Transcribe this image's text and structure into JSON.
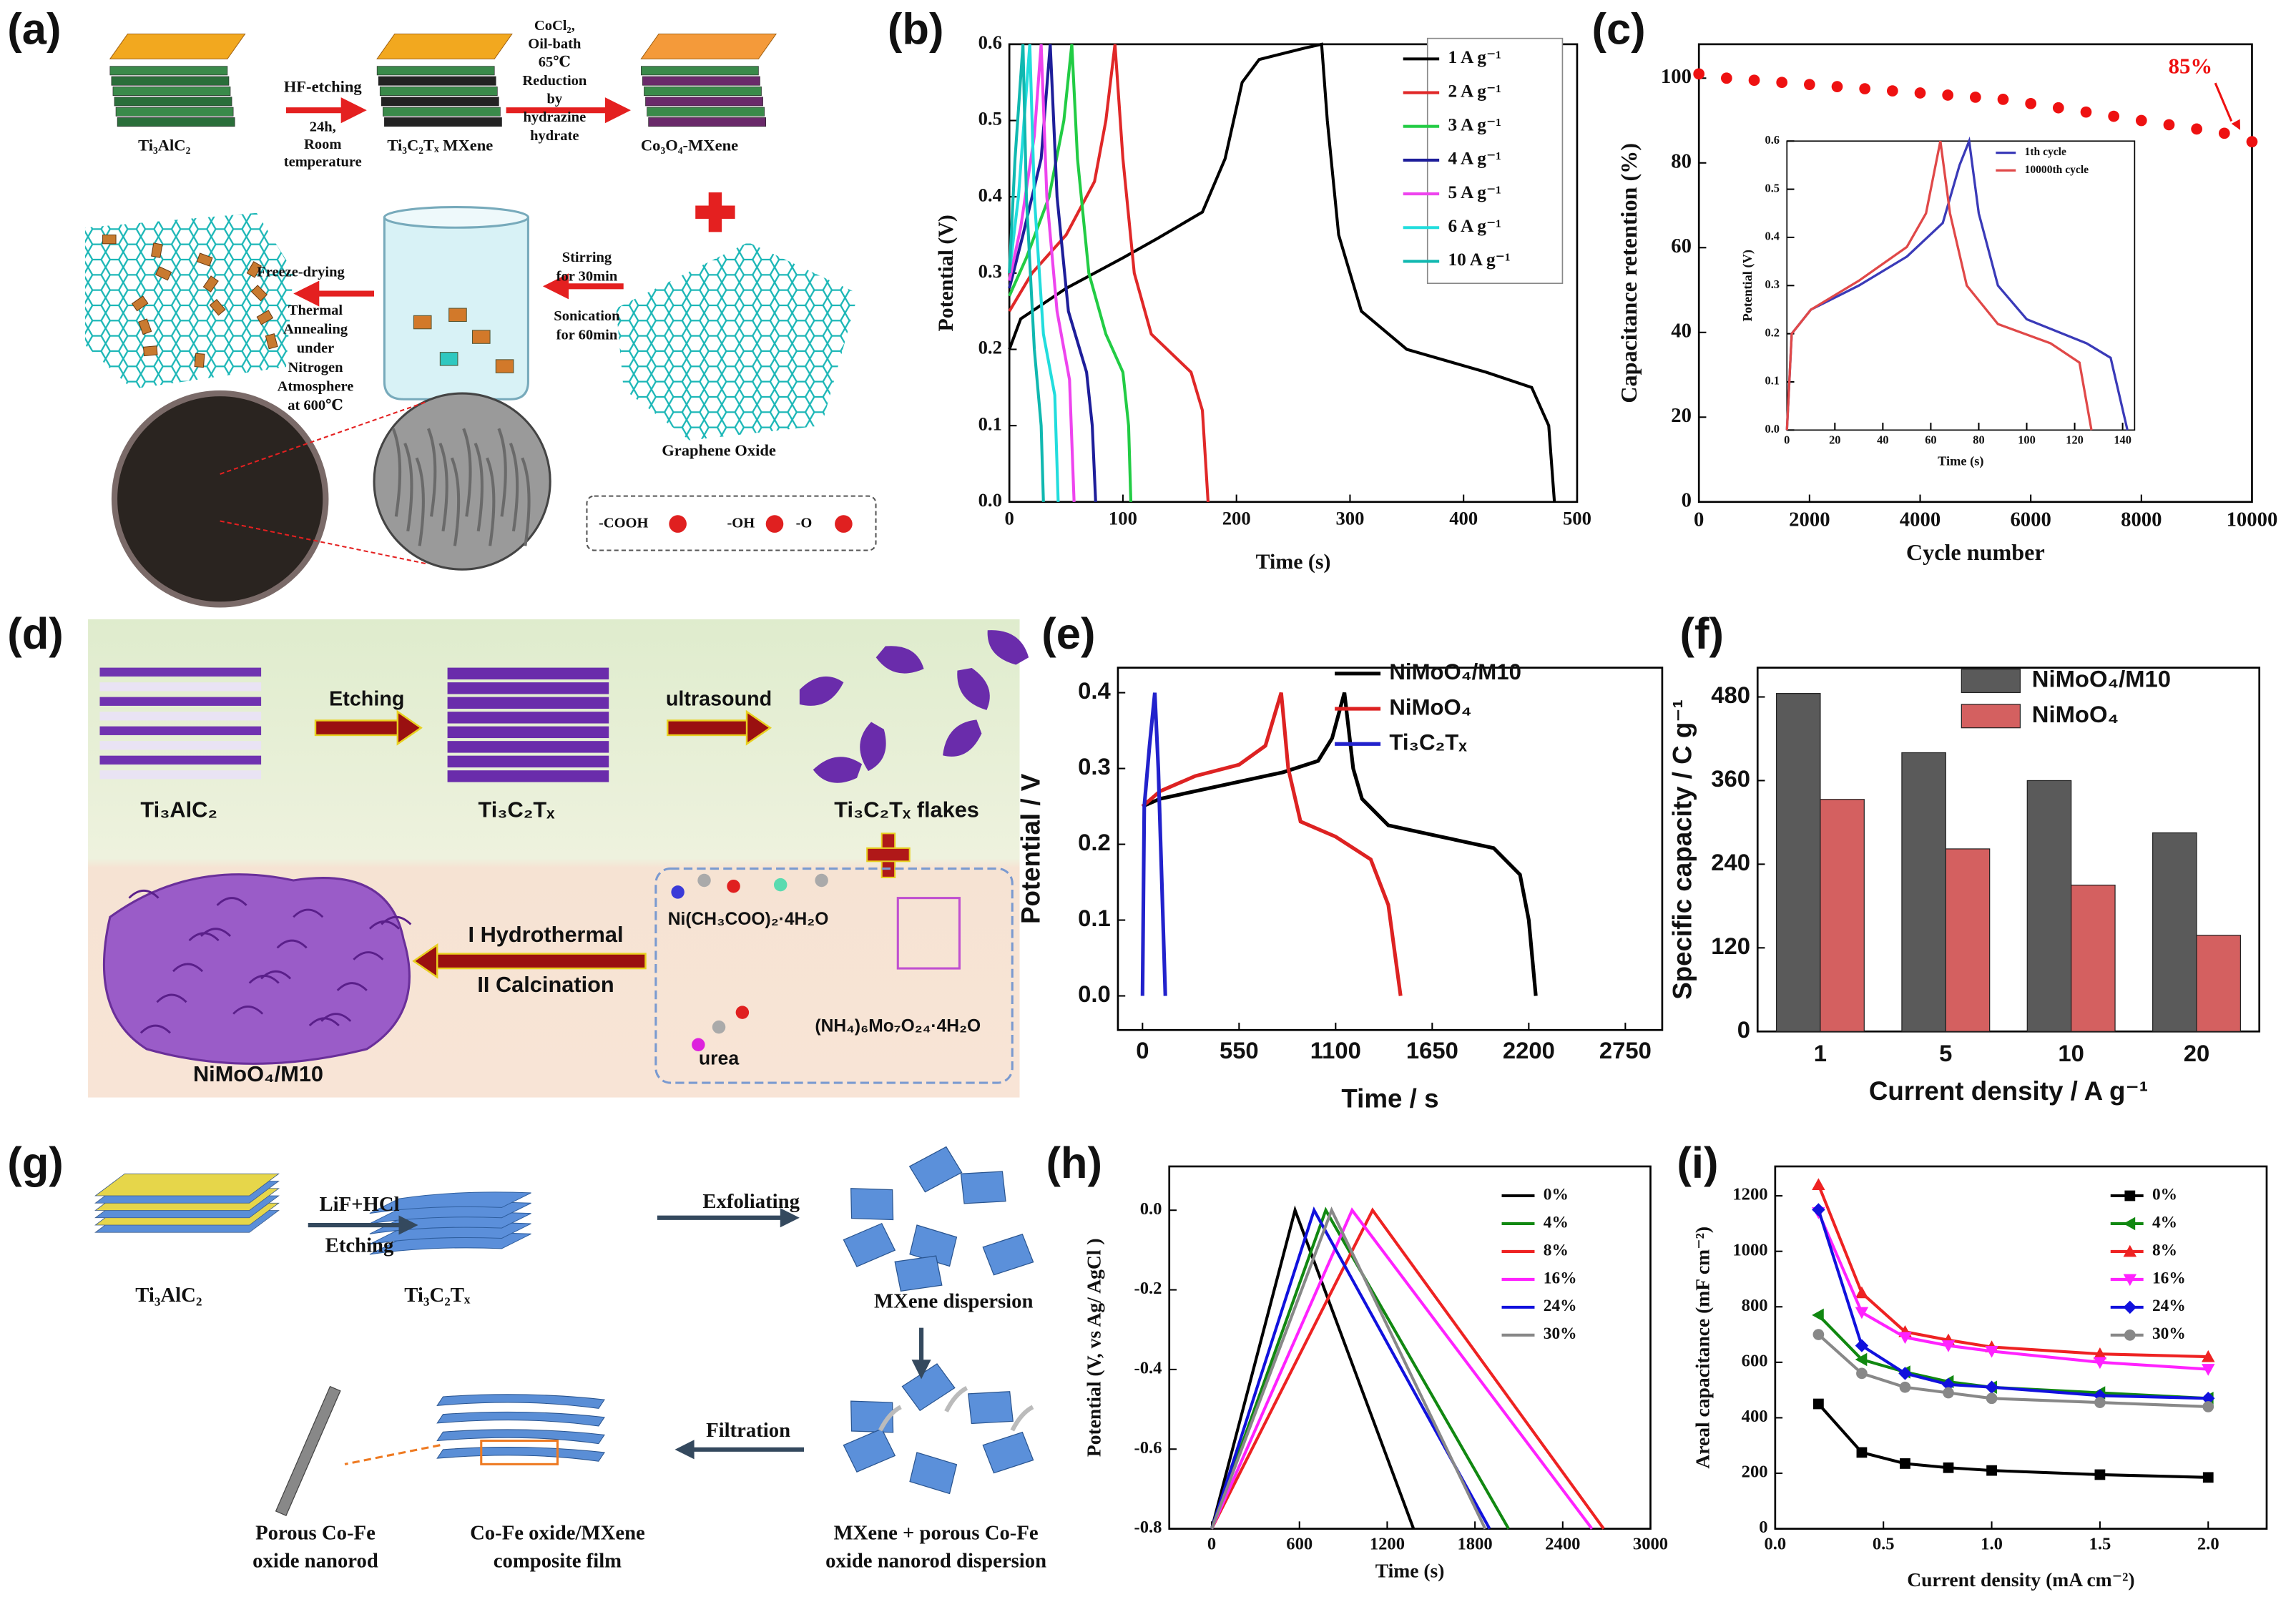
{
  "panel_labels": [
    "(a)",
    "(b)",
    "(c)",
    "(d)",
    "(e)",
    "(f)",
    "(g)",
    "(h)",
    "(i)"
  ],
  "diagrams": {
    "a": {
      "precursor": "Ti₃AlC₂",
      "step1": [
        "HF-etching"
      ],
      "step1_cond": [
        "24h,",
        "Room",
        "temperature"
      ],
      "mxene": "Ti₃C₂Tₓ MXene",
      "step2": [
        "CoCl₂,",
        "Oil-bath",
        "65℃",
        "Reduction",
        "by",
        "hydrazine",
        "hydrate"
      ],
      "product": "Co₃O₄-MXene",
      "stir": [
        "Stirring",
        "for 30min"
      ],
      "sonic": [
        "Sonication",
        "for 60min"
      ],
      "freeze": "Freeze-drying",
      "anneal": [
        "Thermal",
        "Annealing",
        "under",
        "Nitrogen",
        "Atmosphere",
        "at 600℃"
      ],
      "go": "Graphene Oxide",
      "groups": [
        "-COOH",
        "-OH",
        "-O"
      ]
    },
    "d": {
      "etch": "Etching",
      "ultra": "ultrasound",
      "precursor": "Ti₃AlC₂",
      "mxene": "Ti₃C₂Tₓ",
      "flakes": "Ti₃C₂Tₓ flakes",
      "hydro": "I  Hydrothermal",
      "calc": "II  Calcination",
      "product": "NiMoO₄/M10",
      "ni": "Ni(CH₃COO)₂·4H₂O",
      "urea": "urea",
      "mo": "(NH₄)₆Mo₇O₂₄·4H₂O"
    },
    "g": {
      "reagent": "LiF+HCl",
      "etch": "Etching",
      "exf": "Exfoliating",
      "precursor": "Ti₃AlC₂",
      "mxene": "Ti₃C₂Tₓ",
      "disp": "MXene dispersion",
      "filt": "Filtration",
      "rod": [
        "Porous Co-Fe",
        "oxide nanorod"
      ],
      "film": [
        "Co-Fe oxide/MXene",
        "composite film"
      ],
      "mix": [
        "MXene + porous Co-Fe",
        "oxide nanorod dispersion"
      ]
    }
  },
  "chart_data": [
    {
      "type": "line",
      "xlabel": "Time (s)",
      "ylabel": "Potential (V)",
      "xlim": [
        0,
        500
      ],
      "ylim": [
        0,
        0.6
      ],
      "xticks": [
        0,
        100,
        200,
        300,
        400,
        500
      ],
      "yticks": [
        {
          "value": 0,
          "label": "0.0"
        },
        0.1,
        0.2,
        0.3,
        0.4,
        0.5,
        0.6
      ],
      "legend": "upper right",
      "series": [
        {
          "name": "1 A g⁻¹",
          "color": "#000000",
          "x": [
            0,
            10,
            50,
            100,
            130,
            170,
            190,
            205,
            220,
            260,
            275,
            280,
            290,
            310,
            350,
            420,
            460,
            475,
            480
          ],
          "values": [
            0.2,
            0.24,
            0.28,
            0.32,
            0.345,
            0.38,
            0.45,
            0.55,
            0.58,
            0.595,
            0.6,
            0.5,
            0.35,
            0.25,
            0.2,
            0.17,
            0.15,
            0.1,
            0
          ]
        },
        {
          "name": "2 A g⁻¹",
          "color": "#e02828",
          "x": [
            0,
            20,
            50,
            75,
            85,
            93,
            100,
            110,
            125,
            160,
            170,
            175
          ],
          "values": [
            0.25,
            0.3,
            0.35,
            0.42,
            0.5,
            0.6,
            0.45,
            0.3,
            0.22,
            0.17,
            0.12,
            0
          ]
        },
        {
          "name": "3 A g⁻¹",
          "color": "#22cc44",
          "x": [
            0,
            15,
            35,
            48,
            55,
            60,
            70,
            85,
            100,
            105,
            107
          ],
          "values": [
            0.27,
            0.32,
            0.4,
            0.5,
            0.6,
            0.45,
            0.3,
            0.22,
            0.17,
            0.1,
            0
          ]
        },
        {
          "name": "4 A g⁻¹",
          "color": "#1e1e9a",
          "x": [
            0,
            12,
            28,
            36,
            42,
            52,
            68,
            73,
            76
          ],
          "values": [
            0.28,
            0.35,
            0.45,
            0.6,
            0.4,
            0.25,
            0.17,
            0.1,
            0
          ]
        },
        {
          "name": "5 A g⁻¹",
          "color": "#ee44ee",
          "x": [
            0,
            10,
            22,
            28,
            33,
            42,
            53,
            57
          ],
          "values": [
            0.29,
            0.36,
            0.48,
            0.6,
            0.4,
            0.25,
            0.16,
            0
          ]
        },
        {
          "name": "6 A g⁻¹",
          "color": "#22dddd",
          "x": [
            0,
            8,
            18,
            22,
            30,
            40,
            43
          ],
          "values": [
            0.3,
            0.4,
            0.6,
            0.4,
            0.22,
            0.14,
            0
          ]
        },
        {
          "name": "10 A g⁻¹",
          "color": "#10b8b0",
          "x": [
            0,
            5,
            12,
            15,
            22,
            28,
            30
          ],
          "values": [
            0.3,
            0.45,
            0.6,
            0.4,
            0.2,
            0.1,
            0
          ]
        }
      ]
    },
    {
      "type": "scatter",
      "xlabel": "Cycle number",
      "ylabel": "Capacitance retention (%)",
      "xlim": [
        0,
        10000
      ],
      "ylim": [
        0,
        108
      ],
      "xticks": [
        0,
        2000,
        4000,
        6000,
        8000,
        10000
      ],
      "yticks": [
        0,
        20,
        40,
        60,
        80,
        100
      ],
      "color": "#ee1111",
      "annotation": "85%",
      "x": [
        0,
        500,
        1000,
        1500,
        2000,
        2500,
        3000,
        3500,
        4000,
        4500,
        5000,
        5500,
        6000,
        6500,
        7000,
        7500,
        8000,
        8500,
        9000,
        9500,
        10000
      ],
      "values": [
        101,
        100,
        99.5,
        99,
        98.5,
        98,
        97.5,
        97,
        96.5,
        96,
        95.5,
        95,
        94,
        93,
        92,
        91,
        90,
        89,
        88,
        87,
        85
      ]
    },
    {
      "type": "line",
      "xlabel": "Time (s)",
      "ylabel": "Potential (V)",
      "xlim": [
        0,
        145
      ],
      "ylim": [
        0,
        0.6
      ],
      "xticks": [
        0,
        20,
        40,
        60,
        80,
        100,
        120,
        140
      ],
      "yticks": [
        {
          "value": 0,
          "label": "0.0"
        },
        0.1,
        0.2,
        0.3,
        0.4,
        0.5,
        0.6
      ],
      "legend": "upper right",
      "series": [
        {
          "name": "1th cycle",
          "color": "#3a3ab8",
          "x": [
            0,
            2,
            10,
            30,
            50,
            65,
            72,
            76,
            80,
            88,
            100,
            125,
            135,
            142
          ],
          "values": [
            0,
            0.2,
            0.25,
            0.3,
            0.36,
            0.43,
            0.55,
            0.6,
            0.45,
            0.3,
            0.23,
            0.18,
            0.15,
            0
          ]
        },
        {
          "name": "10000th cycle",
          "color": "#e04848",
          "x": [
            0,
            2,
            10,
            30,
            50,
            58,
            64,
            68,
            75,
            88,
            110,
            122,
            127
          ],
          "values": [
            0,
            0.2,
            0.25,
            0.31,
            0.38,
            0.45,
            0.6,
            0.45,
            0.3,
            0.22,
            0.18,
            0.14,
            0
          ]
        }
      ]
    },
    {
      "type": "line",
      "xlabel": "Time / s",
      "ylabel": "Potential / V",
      "xlim": [
        -140,
        2960
      ],
      "ylim": [
        -0.045,
        0.433
      ],
      "xticks": [
        0,
        550,
        1100,
        1650,
        2200,
        2750
      ],
      "yticks": [
        {
          "value": 0,
          "label": "0.0"
        },
        0.1,
        0.2,
        0.3,
        0.4
      ],
      "legend": "upper right",
      "series": [
        {
          "name": "NiMoO₄/M10",
          "color": "#000000",
          "x": [
            0,
            100,
            400,
            800,
            1000,
            1080,
            1150,
            1200,
            1250,
            1400,
            1700,
            2000,
            2150,
            2200,
            2240
          ],
          "values": [
            0.25,
            0.26,
            0.275,
            0.295,
            0.31,
            0.34,
            0.4,
            0.3,
            0.26,
            0.225,
            0.21,
            0.195,
            0.16,
            0.1,
            0
          ]
        },
        {
          "name": "NiMoO₄",
          "color": "#dd2222",
          "x": [
            0,
            100,
            300,
            550,
            700,
            790,
            830,
            900,
            1100,
            1300,
            1400,
            1470
          ],
          "values": [
            0.25,
            0.27,
            0.29,
            0.305,
            0.33,
            0.4,
            0.3,
            0.23,
            0.21,
            0.18,
            0.12,
            0
          ]
        },
        {
          "name": "Ti₃C₂Tₓ",
          "color": "#2222cc",
          "x": [
            0,
            10,
            40,
            70,
            90,
            110,
            130
          ],
          "values": [
            0,
            0.25,
            0.33,
            0.4,
            0.3,
            0.15,
            0
          ]
        }
      ]
    },
    {
      "type": "bar",
      "xlabel": "Current density / A g⁻¹",
      "ylabel": "Specific capacity / C g⁻¹",
      "categories": [
        "1",
        "5",
        "10",
        "20"
      ],
      "ylim": [
        0,
        522
      ],
      "yticks": [
        0,
        120,
        240,
        360,
        480
      ],
      "legend": "upper right",
      "series": [
        {
          "name": "NiMoO₄/M10",
          "color": "#5a5a5a",
          "values": [
            485,
            400,
            360,
            285
          ]
        },
        {
          "name": "NiMoO₄",
          "color": "#d46060",
          "values": [
            333,
            262,
            210,
            138
          ]
        }
      ]
    },
    {
      "type": "line",
      "xlabel": "Time (s)",
      "ylabel": "Potential (V, vs Ag/ AgCl )",
      "xlim": [
        -290,
        3000
      ],
      "ylim": [
        -0.8,
        0.11
      ],
      "xticks": [
        0,
        600,
        1200,
        1800,
        2400,
        3000
      ],
      "yticks": [
        {
          "value": 0,
          "label": "0.0"
        },
        -0.2,
        -0.4,
        -0.6,
        -0.8
      ],
      "legend": "upper right",
      "series": [
        {
          "name": "0%",
          "color": "#000000",
          "x": [
            0,
            570,
            1380
          ],
          "values": [
            -0.8,
            0,
            -0.8
          ]
        },
        {
          "name": "4%",
          "color": "#118811",
          "x": [
            0,
            780,
            2030
          ],
          "values": [
            -0.8,
            0,
            -0.8
          ]
        },
        {
          "name": "8%",
          "color": "#ee2222",
          "x": [
            0,
            1100,
            2680
          ],
          "values": [
            -0.8,
            0,
            -0.8
          ]
        },
        {
          "name": "16%",
          "color": "#ff22ff",
          "x": [
            0,
            960,
            2600
          ],
          "values": [
            -0.8,
            0,
            -0.8
          ]
        },
        {
          "name": "24%",
          "color": "#1111dd",
          "x": [
            0,
            700,
            1900
          ],
          "values": [
            -0.8,
            0,
            -0.8
          ]
        },
        {
          "name": "30%",
          "color": "#888888",
          "x": [
            0,
            820,
            1870
          ],
          "values": [
            -0.8,
            0,
            -0.8
          ]
        }
      ]
    },
    {
      "type": "line",
      "xlabel": "Current density (mA cm⁻²)",
      "ylabel": "Areal capacitance (mF cm⁻²)",
      "xlim": [
        0,
        2.27
      ],
      "ylim": [
        0,
        1306
      ],
      "xticks": [
        {
          "value": 0,
          "label": "0.0"
        },
        0.5,
        {
          "value": 1,
          "label": "1.0"
        },
        1.5,
        {
          "value": 2,
          "label": "2.0"
        }
      ],
      "yticks": [
        0,
        200,
        400,
        600,
        800,
        1000,
        1200
      ],
      "legend": "upper right",
      "series": [
        {
          "name": "0%",
          "color": "#000000",
          "marker": "square",
          "x": [
            0.2,
            0.4,
            0.6,
            0.8,
            1,
            1.5,
            2
          ],
          "values": [
            450,
            275,
            235,
            220,
            210,
            195,
            185
          ]
        },
        {
          "name": "4%",
          "color": "#118811",
          "marker": "triangle-left",
          "x": [
            0.2,
            0.4,
            0.6,
            0.8,
            1,
            1.5,
            2
          ],
          "values": [
            770,
            610,
            565,
            530,
            510,
            490,
            470
          ]
        },
        {
          "name": "8%",
          "color": "#ee2222",
          "marker": "triangle",
          "x": [
            0.2,
            0.4,
            0.6,
            0.8,
            1,
            1.5,
            2
          ],
          "values": [
            1240,
            850,
            710,
            680,
            655,
            630,
            620
          ]
        },
        {
          "name": "16%",
          "color": "#ff22ff",
          "marker": "triangle-down",
          "x": [
            0.2,
            0.4,
            0.6,
            0.8,
            1,
            1.5,
            2
          ],
          "values": [
            1140,
            780,
            690,
            660,
            640,
            600,
            575
          ]
        },
        {
          "name": "24%",
          "color": "#1111dd",
          "marker": "diamond",
          "x": [
            0.2,
            0.4,
            0.6,
            0.8,
            1,
            1.5,
            2
          ],
          "values": [
            1150,
            660,
            560,
            520,
            510,
            480,
            470
          ]
        },
        {
          "name": "30%",
          "color": "#888888",
          "marker": "circle",
          "x": [
            0.2,
            0.4,
            0.6,
            0.8,
            1,
            1.5,
            2
          ],
          "values": [
            700,
            560,
            510,
            490,
            470,
            455,
            440
          ]
        }
      ]
    }
  ]
}
